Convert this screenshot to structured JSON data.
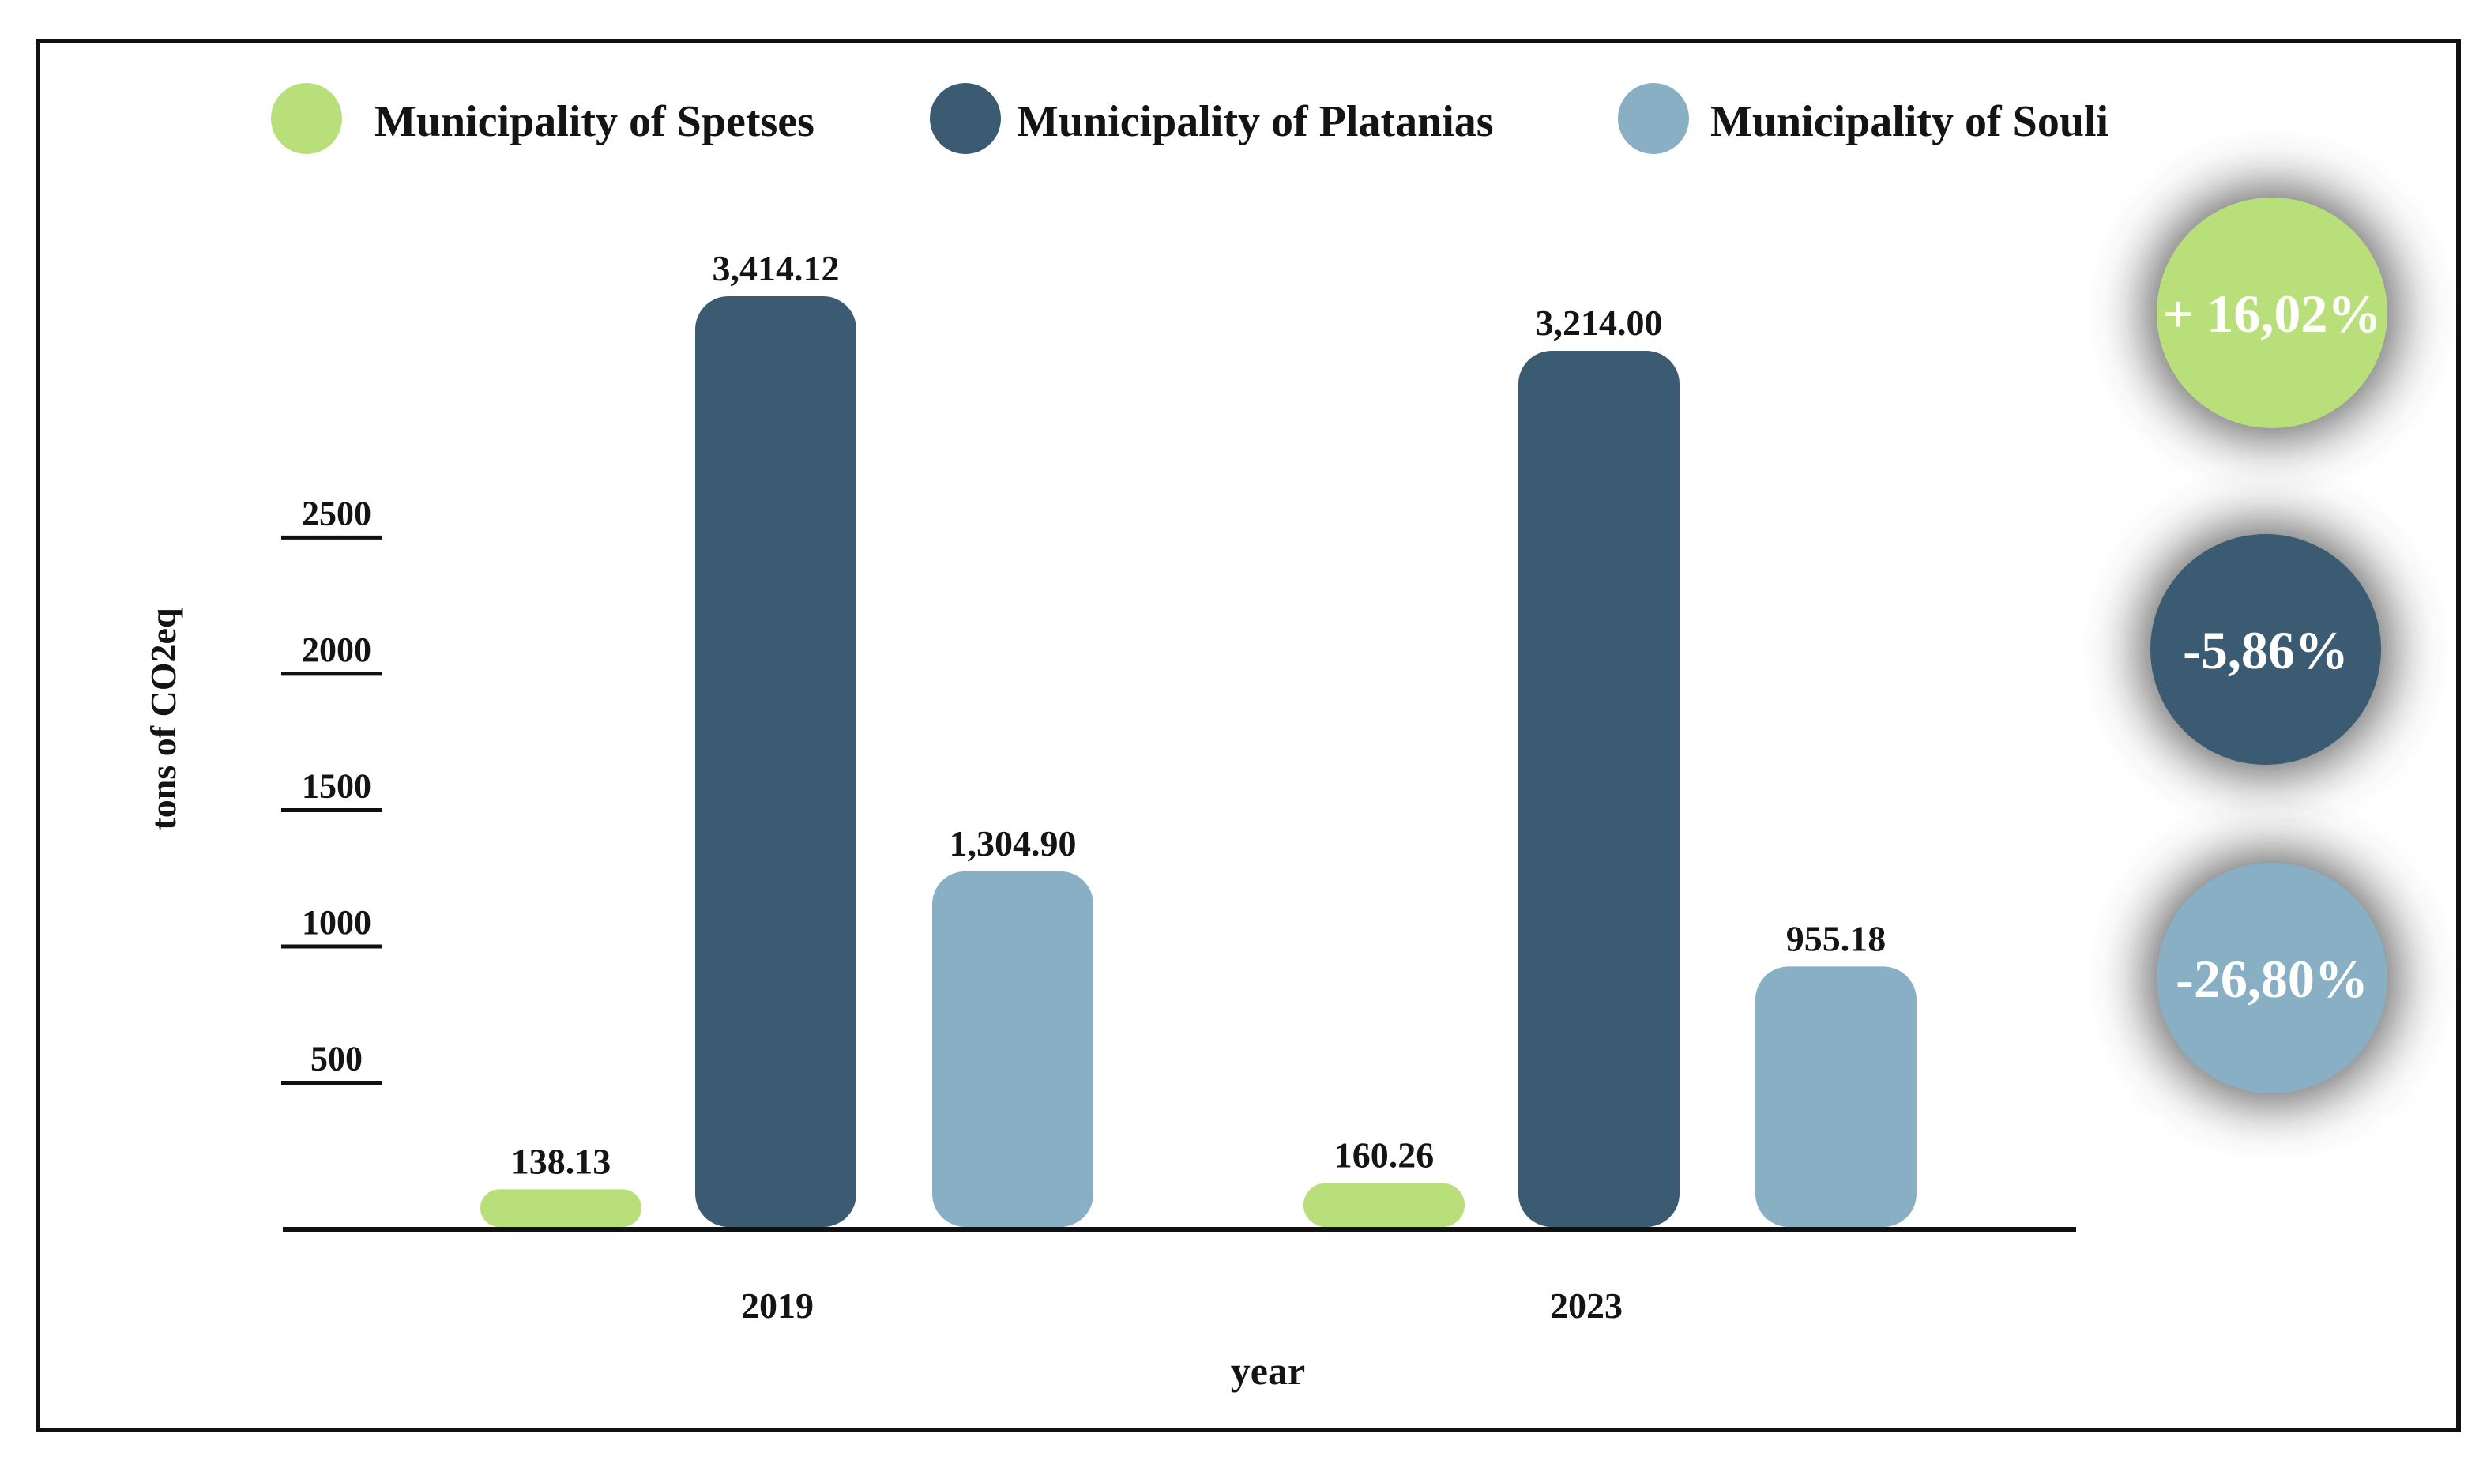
{
  "chart_data": {
    "type": "bar",
    "title": "",
    "xlabel": "year",
    "ylabel": "tons of CO2eq",
    "categories": [
      "2019",
      "2023"
    ],
    "y_ticks": [
      500,
      1000,
      1500,
      2000,
      2500
    ],
    "ylim": [
      0,
      3450
    ],
    "legend_position": "top",
    "series": [
      {
        "name": "Municipality of Spetses",
        "color": "#b8df7a",
        "values": [
          138.13,
          160.26
        ],
        "labels": [
          "138.13",
          "160.26"
        ],
        "change": "+ 16,02%"
      },
      {
        "name": "Municipality of Platanias",
        "color": "#3b5b73",
        "values": [
          3414.12,
          3214.0
        ],
        "labels": [
          "3,414.12",
          "3,214.00"
        ],
        "change": "-5,86%"
      },
      {
        "name": "Municipality of Souli",
        "color": "#88afc4",
        "values": [
          1304.9,
          955.18
        ],
        "labels": [
          "1,304.90",
          "955.18"
        ],
        "change": "-26,80%"
      }
    ]
  }
}
